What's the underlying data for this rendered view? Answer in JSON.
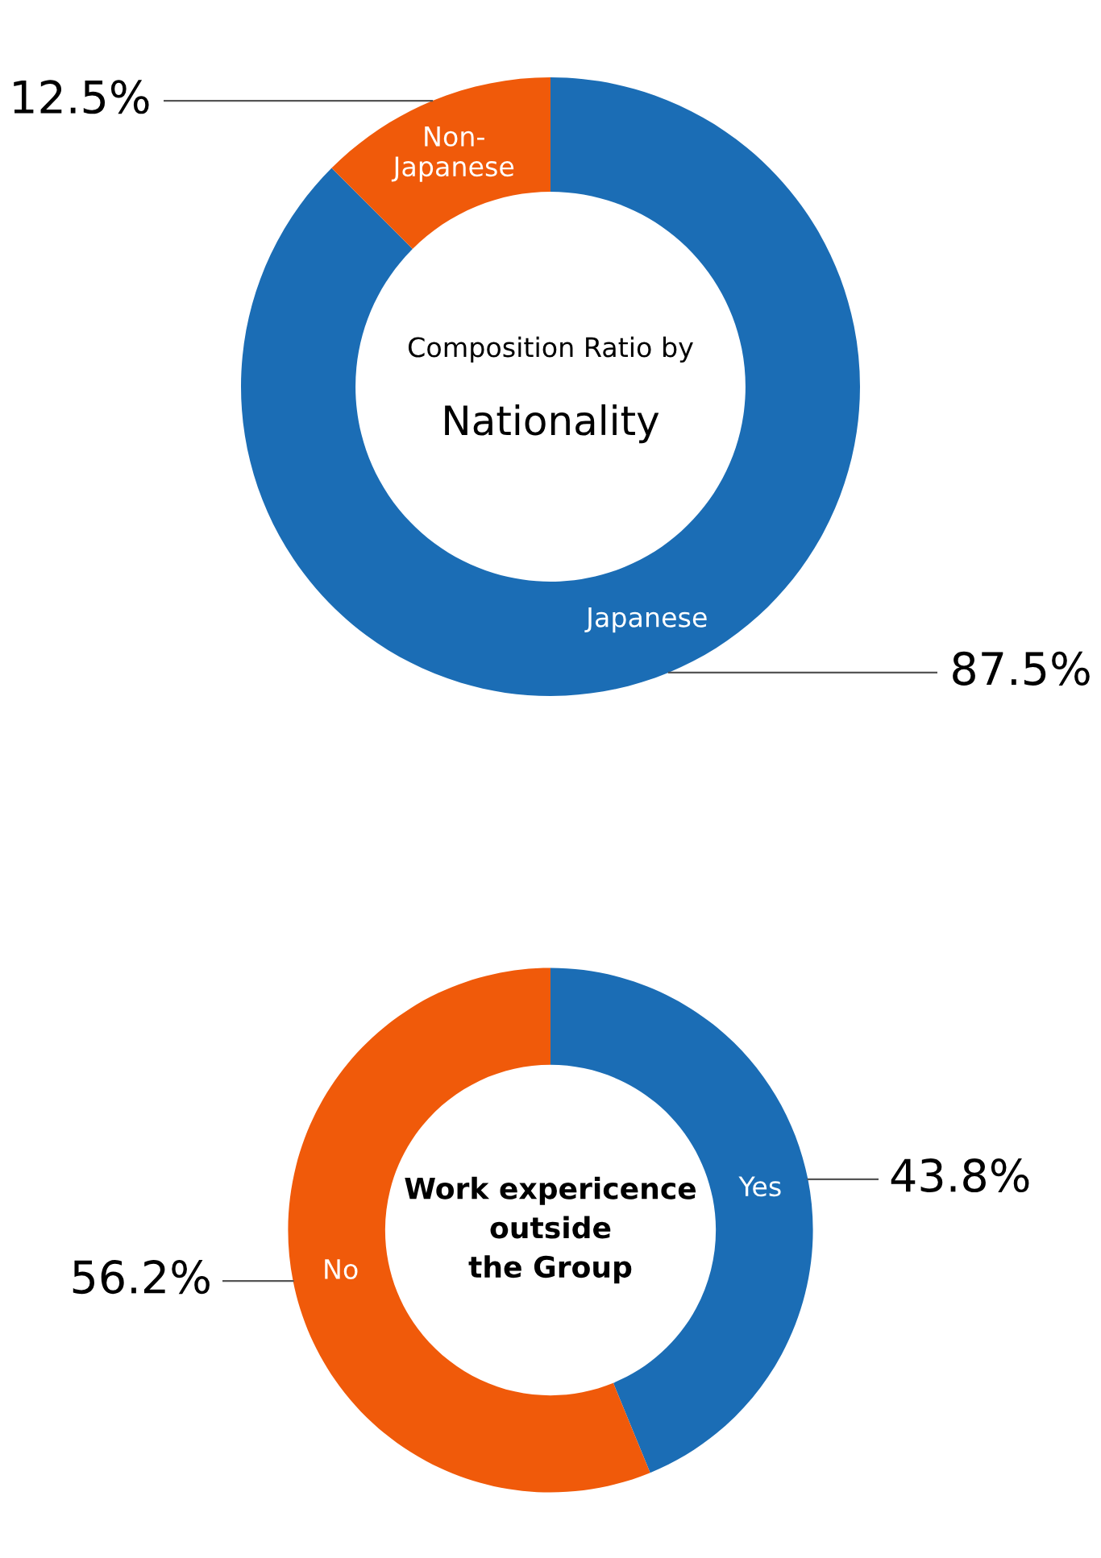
{
  "chart_data": [
    {
      "type": "donut",
      "title": "Composition Ratio by",
      "subtitle": "Nationality",
      "categories": [
        "Japanese",
        "Non-\nJapanese"
      ],
      "values": [
        87.5,
        12.5
      ],
      "colors": [
        "#1b6db5",
        "#f05a0a"
      ],
      "value_labels": [
        "87.5%",
        "12.5%"
      ]
    },
    {
      "type": "donut",
      "title": "Work expericence\noutside\nthe Group",
      "categories": [
        "Yes",
        "No"
      ],
      "values": [
        43.8,
        56.2
      ],
      "colors": [
        "#1b6db5",
        "#f05a0a"
      ],
      "value_labels": [
        "43.8%",
        "56.2%"
      ]
    }
  ]
}
